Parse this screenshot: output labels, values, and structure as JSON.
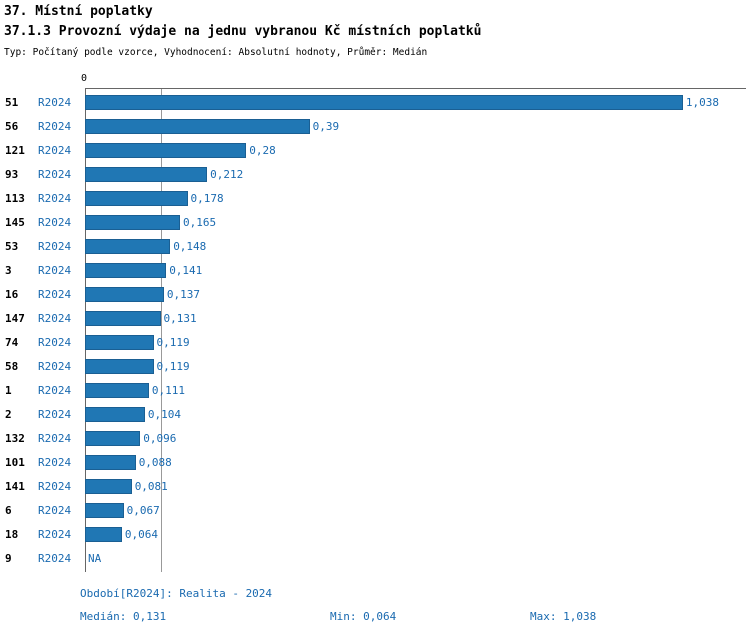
{
  "header": {
    "title1": "37. Místní poplatky",
    "title2": "37.1.3 Provozní výdaje na jednu vybranou Kč místních poplatků",
    "subtitle": "Typ: Počítaný podle vzorce, Vyhodnocení: Absolutní hodnoty, Průměr: Medián"
  },
  "colors": {
    "bar": "#2077b4",
    "blue_text": "#1a6ab0",
    "axis": "#666666",
    "gridline": "#999999"
  },
  "chart_data": {
    "type": "bar",
    "orientation": "horizontal",
    "axis_zero_label": "0",
    "series_label": "R2024",
    "median_value": 0.131,
    "xlim": [
      0,
      1.15
    ],
    "rows": [
      {
        "id": "51",
        "period": "R2024",
        "value": 1.038,
        "label": "1,038"
      },
      {
        "id": "56",
        "period": "R2024",
        "value": 0.39,
        "label": "0,39"
      },
      {
        "id": "121",
        "period": "R2024",
        "value": 0.28,
        "label": "0,28"
      },
      {
        "id": "93",
        "period": "R2024",
        "value": 0.212,
        "label": "0,212"
      },
      {
        "id": "113",
        "period": "R2024",
        "value": 0.178,
        "label": "0,178"
      },
      {
        "id": "145",
        "period": "R2024",
        "value": 0.165,
        "label": "0,165"
      },
      {
        "id": "53",
        "period": "R2024",
        "value": 0.148,
        "label": "0,148"
      },
      {
        "id": "3",
        "period": "R2024",
        "value": 0.141,
        "label": "0,141"
      },
      {
        "id": "16",
        "period": "R2024",
        "value": 0.137,
        "label": "0,137"
      },
      {
        "id": "147",
        "period": "R2024",
        "value": 0.131,
        "label": "0,131"
      },
      {
        "id": "74",
        "period": "R2024",
        "value": 0.119,
        "label": "0,119"
      },
      {
        "id": "58",
        "period": "R2024",
        "value": 0.119,
        "label": "0,119"
      },
      {
        "id": "1",
        "period": "R2024",
        "value": 0.111,
        "label": "0,111"
      },
      {
        "id": "2",
        "period": "R2024",
        "value": 0.104,
        "label": "0,104"
      },
      {
        "id": "132",
        "period": "R2024",
        "value": 0.096,
        "label": "0,096"
      },
      {
        "id": "101",
        "period": "R2024",
        "value": 0.088,
        "label": "0,088"
      },
      {
        "id": "141",
        "period": "R2024",
        "value": 0.081,
        "label": "0,081"
      },
      {
        "id": "6",
        "period": "R2024",
        "value": 0.067,
        "label": "0,067"
      },
      {
        "id": "18",
        "period": "R2024",
        "value": 0.064,
        "label": "0,064"
      },
      {
        "id": "9",
        "period": "R2024",
        "value": null,
        "label": "NA"
      }
    ]
  },
  "footer": {
    "period_line": "Období[R2024]: Realita - 2024",
    "median": "Medián: 0,131",
    "min": "Min: 0,064",
    "max": "Max: 1,038"
  }
}
